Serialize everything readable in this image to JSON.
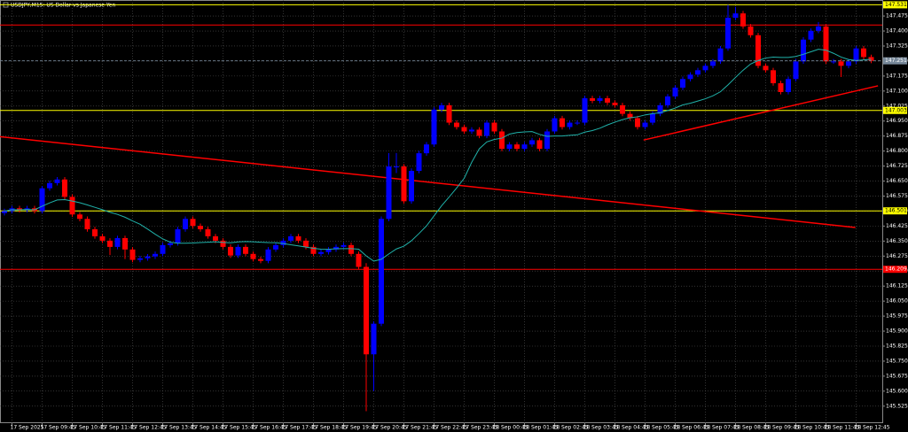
{
  "chart_data": {
    "type": "candlestick",
    "title": "USDJPY,M15: US Dollar vs Japanese Yen",
    "up_color": "#0000ff",
    "down_color": "#ff0000",
    "ma_color": "#20b2aa",
    "grid": true,
    "ylim": [
      145.44,
      147.555
    ],
    "yticks": [
      145.525,
      {
        "value": 145.6,
        "label": "145.600"
      },
      145.675,
      {
        "value": 145.75,
        "label": "145.750"
      },
      145.825,
      {
        "value": 145.9,
        "label": "145.900"
      },
      145.975,
      {
        "value": 146.05,
        "label": "146.050"
      },
      146.125,
      {
        "value": 146.2,
        "label": "146.200"
      },
      146.275,
      {
        "value": 146.35,
        "label": "146.350"
      },
      146.425,
      {
        "value": 146.5,
        "label": "146.500"
      },
      146.575,
      {
        "value": 146.65,
        "label": "146.650"
      },
      146.725,
      {
        "value": 146.8,
        "label": "146.800"
      },
      146.875,
      {
        "value": 146.95,
        "label": "146.950"
      },
      147.025,
      {
        "value": 147.1,
        "label": "147.100"
      },
      147.175,
      {
        "value": 147.25,
        "label": "147.250"
      },
      147.325,
      {
        "value": 147.4,
        "label": "147.400"
      },
      147.475
    ],
    "xticks": [
      {
        "value": 1,
        "label": "17 Sep 2025"
      },
      {
        "value": 5,
        "label": "17 Sep 09:45"
      },
      {
        "value": 9,
        "label": "17 Sep 10:45"
      },
      {
        "value": 13,
        "label": "17 Sep 11:45"
      },
      {
        "value": 17,
        "label": "17 Sep 12:45"
      },
      {
        "value": 21,
        "label": "17 Sep 13:45"
      },
      {
        "value": 25,
        "label": "17 Sep 14:45"
      },
      {
        "value": 29,
        "label": "17 Sep 15:45"
      },
      {
        "value": 33,
        "label": "17 Sep 16:45"
      },
      {
        "value": 37,
        "label": "17 Sep 17:45"
      },
      {
        "value": 41,
        "label": "17 Sep 18:45"
      },
      {
        "value": 45,
        "label": "17 Sep 19:45"
      },
      {
        "value": 49,
        "label": "17 Sep 20:45"
      },
      {
        "value": 53,
        "label": "17 Sep 21:45"
      },
      {
        "value": 57,
        "label": "17 Sep 22:45"
      },
      {
        "value": 61,
        "label": "17 Sep 23:45"
      },
      {
        "value": 65,
        "label": "18 Sep 00:45"
      },
      {
        "value": 69,
        "label": "18 Sep 01:45"
      },
      {
        "value": 73,
        "label": "18 Sep 02:45"
      },
      {
        "value": 77,
        "label": "18 Sep 03:45"
      },
      {
        "value": 81,
        "label": "18 Sep 04:45"
      },
      {
        "value": 85,
        "label": "18 Sep 05:45"
      },
      {
        "value": 89,
        "label": "18 Sep 06:45"
      },
      {
        "value": 93,
        "label": "18 Sep 07:45"
      },
      {
        "value": 97,
        "label": "18 Sep 08:45"
      },
      {
        "value": 101,
        "label": "18 Sep 09:45"
      },
      {
        "value": 105,
        "label": "18 Sep 10:45"
      },
      {
        "value": 109,
        "label": "18 Sep 11:45"
      },
      {
        "value": 113,
        "label": "18 Sep 12:45"
      }
    ],
    "open": [
      146.49,
      146.5,
      146.514,
      146.505,
      146.514,
      146.5,
      146.614,
      146.64,
      146.658,
      146.571,
      146.483,
      146.461,
      146.409,
      146.374,
      146.352,
      146.321,
      146.365,
      146.308,
      146.256,
      146.264,
      146.273,
      146.286,
      146.33,
      146.339,
      146.409,
      146.461,
      146.426,
      146.409,
      146.374,
      146.352,
      146.321,
      146.278,
      146.321,
      146.286,
      146.26,
      146.251,
      146.308,
      146.33,
      146.352,
      146.374,
      146.352,
      146.321,
      146.286,
      146.295,
      146.308,
      146.321,
      146.33,
      146.286,
      146.221,
      145.784,
      145.937,
      146.461,
      146.723,
      146.723,
      146.549,
      146.701,
      146.789,
      146.833,
      147.007,
      147.029,
      146.942,
      146.92,
      146.898,
      146.907,
      146.876,
      146.942,
      146.898,
      146.811,
      146.833,
      146.811,
      146.833,
      146.854,
      146.811,
      146.898,
      146.964,
      146.92,
      146.942,
      146.942,
      147.064,
      147.051,
      147.064,
      147.042,
      147.029,
      146.986,
      146.964,
      146.92,
      146.942,
      146.986,
      147.029,
      147.073,
      147.117,
      147.16,
      147.182,
      147.204,
      147.226,
      147.248,
      147.313,
      147.466,
      147.488,
      147.423,
      147.379,
      147.226,
      147.204,
      147.139,
      147.095,
      147.16,
      147.248,
      147.357,
      147.401,
      147.423,
      147.248,
      147.248,
      147.226,
      147.248,
      147.313,
      147.27
    ],
    "high": [
      146.512,
      146.526,
      146.526,
      146.526,
      146.526,
      146.626,
      146.652,
      146.67,
      146.67,
      146.583,
      146.495,
      146.473,
      146.421,
      146.386,
      146.364,
      146.377,
      146.377,
      146.32,
      146.276,
      146.285,
      146.298,
      146.342,
      146.351,
      146.421,
      146.473,
      146.473,
      146.438,
      146.421,
      146.386,
      146.364,
      146.333,
      146.333,
      146.333,
      146.298,
      146.272,
      146.32,
      146.342,
      146.364,
      146.386,
      146.386,
      146.364,
      146.333,
      146.307,
      146.32,
      146.333,
      146.342,
      146.342,
      146.298,
      146.24,
      145.949,
      146.473,
      146.79,
      146.79,
      146.735,
      146.713,
      146.801,
      146.845,
      147.019,
      147.041,
      147.041,
      146.954,
      146.932,
      146.919,
      146.919,
      146.954,
      146.954,
      146.91,
      146.845,
      146.845,
      146.845,
      146.866,
      146.866,
      146.91,
      146.976,
      146.976,
      146.954,
      146.954,
      147.076,
      147.076,
      147.076,
      147.076,
      147.054,
      147.041,
      146.998,
      146.976,
      146.954,
      146.998,
      147.041,
      147.085,
      147.129,
      147.172,
      147.194,
      147.216,
      147.238,
      147.26,
      147.325,
      147.531,
      147.52,
      147.5,
      147.435,
      147.391,
      147.238,
      147.216,
      147.151,
      147.172,
      147.26,
      147.369,
      147.413,
      147.445,
      147.435,
      147.26,
      147.26,
      147.26,
      147.325,
      147.325,
      147.282
    ],
    "low": [
      146.478,
      146.488,
      146.493,
      146.493,
      146.488,
      146.488,
      146.602,
      146.628,
      146.559,
      146.471,
      146.449,
      146.397,
      146.362,
      146.34,
      146.28,
      146.309,
      146.26,
      146.244,
      146.244,
      146.252,
      146.261,
      146.274,
      146.318,
      146.327,
      146.397,
      146.414,
      146.397,
      146.362,
      146.34,
      146.309,
      146.266,
      146.266,
      146.274,
      146.248,
      146.239,
      146.239,
      146.296,
      146.318,
      146.34,
      146.34,
      146.309,
      146.274,
      146.274,
      146.283,
      146.296,
      146.309,
      146.274,
      146.209,
      145.5,
      145.6,
      145.925,
      146.449,
      146.69,
      146.537,
      146.537,
      146.689,
      146.777,
      146.821,
      146.995,
      146.93,
      146.908,
      146.886,
      146.886,
      146.864,
      146.864,
      146.886,
      146.799,
      146.799,
      146.799,
      146.799,
      146.821,
      146.799,
      146.799,
      146.886,
      146.908,
      146.908,
      146.93,
      146.93,
      147.039,
      147.039,
      147.03,
      147.017,
      146.974,
      146.952,
      146.908,
      146.908,
      146.93,
      146.974,
      147.017,
      147.061,
      147.105,
      147.148,
      147.17,
      147.192,
      147.214,
      147.236,
      147.301,
      147.454,
      147.411,
      147.367,
      147.214,
      147.192,
      147.127,
      147.083,
      147.083,
      147.148,
      147.236,
      147.345,
      147.389,
      147.236,
      147.236,
      147.17,
      147.214,
      147.236,
      147.258,
      147.239
    ],
    "close": [
      146.5,
      146.514,
      146.505,
      146.514,
      146.5,
      146.614,
      146.64,
      146.658,
      146.571,
      146.483,
      146.461,
      146.409,
      146.374,
      146.352,
      146.321,
      146.365,
      146.308,
      146.256,
      146.264,
      146.273,
      146.286,
      146.33,
      146.339,
      146.409,
      146.461,
      146.426,
      146.409,
      146.374,
      146.352,
      146.321,
      146.278,
      146.321,
      146.286,
      146.26,
      146.251,
      146.308,
      146.33,
      146.352,
      146.374,
      146.352,
      146.321,
      146.286,
      146.295,
      146.308,
      146.321,
      146.33,
      146.286,
      146.221,
      145.784,
      145.937,
      146.461,
      146.723,
      146.723,
      146.549,
      146.701,
      146.789,
      146.833,
      147.007,
      147.029,
      146.942,
      146.92,
      146.898,
      146.907,
      146.876,
      146.942,
      146.898,
      146.811,
      146.833,
      146.811,
      146.833,
      146.854,
      146.811,
      146.898,
      146.964,
      146.92,
      146.942,
      146.942,
      147.064,
      147.051,
      147.064,
      147.042,
      147.029,
      146.986,
      146.964,
      146.92,
      146.942,
      146.986,
      147.029,
      147.073,
      147.117,
      147.16,
      147.182,
      147.204,
      147.226,
      147.248,
      147.313,
      147.466,
      147.488,
      147.423,
      147.379,
      147.226,
      147.204,
      147.139,
      147.095,
      147.16,
      147.248,
      147.357,
      147.401,
      147.423,
      147.248,
      147.248,
      147.226,
      147.248,
      147.313,
      147.27,
      147.251
    ],
    "levels": [
      {
        "value": 147.531,
        "label": "147.531",
        "color": "#ffff00"
      },
      {
        "value": 147.43,
        "color": "#ff0000"
      },
      {
        "value": 147.003,
        "label": "147.003",
        "color": "#ffff00"
      },
      {
        "value": 146.501,
        "label": "146.501",
        "color": "#ffff00"
      },
      {
        "value": 146.209,
        "label": "146.209",
        "color": "#ff0000"
      }
    ],
    "price_line": {
      "value": 147.251,
      "label": "147.251",
      "color": "#778899"
    },
    "trendlines": [
      {
        "color": "#ff0000",
        "points": [
          [
            -0.6,
            146.872
          ],
          [
            112.9,
            146.418
          ]
        ]
      },
      {
        "color": "#ff0000",
        "points": [
          [
            84.8,
            146.855
          ],
          [
            115.9,
            147.126
          ]
        ]
      }
    ]
  }
}
